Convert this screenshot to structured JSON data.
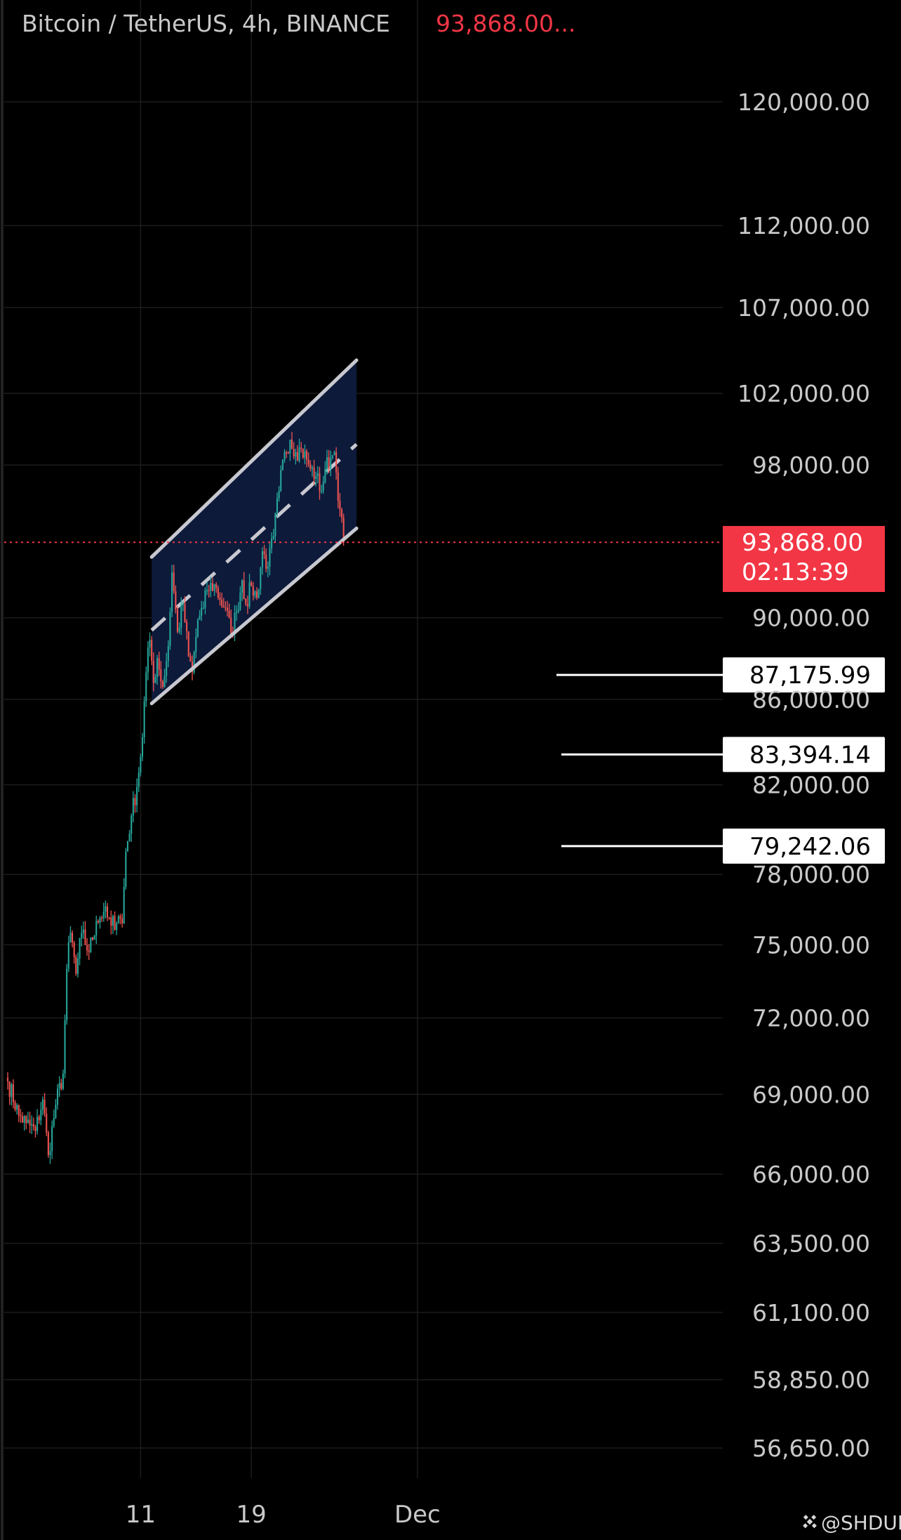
{
  "header": {
    "symbol": "Bitcoin / TetherUS, 4h, BINANCE",
    "price": "93,868.00..."
  },
  "current_price": {
    "value": "93,868.00",
    "countdown": "02:13:39"
  },
  "watermark": "@SHDUK",
  "colors": {
    "background": "#000000",
    "up": "#26a69a",
    "down": "#ef5350",
    "price_tag": "#f23645",
    "channel_fill": "#0d1a3a",
    "channel_line": "#c8c8d0",
    "grid": "#1c1c1c"
  },
  "chart_data": {
    "type": "candlestick",
    "title": "Bitcoin / TetherUS, 4h, BINANCE",
    "y_scale": "log",
    "ylim": [
      55500,
      128000
    ],
    "y_ticks": [
      "120,000.00",
      "112,000.00",
      "107,000.00",
      "102,000.00",
      "98,000.00",
      "90,000.00",
      "86,000.00",
      "82,000.00",
      "78,000.00",
      "75,000.00",
      "72,000.00",
      "69,000.00",
      "66,000.00",
      "63,500.00",
      "61,100.00",
      "58,850.00",
      "56,650.00"
    ],
    "y_tick_values": [
      120000,
      112000,
      107000,
      102000,
      98000,
      90000,
      86000,
      82000,
      78000,
      75000,
      72000,
      69000,
      66000,
      63500,
      61100,
      58850,
      56650
    ],
    "x_ticks": [
      "11",
      "19",
      "Dec"
    ],
    "x_tick_index": [
      72,
      132,
      222
    ],
    "candle_count": 183,
    "checkpoints": [
      [
        0,
        69500
      ],
      [
        6,
        68200
      ],
      [
        10,
        67900
      ],
      [
        15,
        67600
      ],
      [
        19,
        68800
      ],
      [
        22,
        66700
      ],
      [
        26,
        68600
      ],
      [
        30,
        69800
      ],
      [
        32,
        74000
      ],
      [
        34,
        75500
      ],
      [
        37,
        73800
      ],
      [
        40,
        75500
      ],
      [
        44,
        74700
      ],
      [
        48,
        76000
      ],
      [
        52,
        76400
      ],
      [
        56,
        75800
      ],
      [
        60,
        76200
      ],
      [
        62,
        75900
      ],
      [
        64,
        79000
      ],
      [
        67,
        80600
      ],
      [
        70,
        81900
      ],
      [
        73,
        84200
      ],
      [
        75,
        87300
      ],
      [
        77,
        88900
      ],
      [
        79,
        86800
      ],
      [
        81,
        88000
      ],
      [
        84,
        86600
      ],
      [
        87,
        88600
      ],
      [
        89,
        92300
      ],
      [
        92,
        89300
      ],
      [
        95,
        90700
      ],
      [
        98,
        88100
      ],
      [
        100,
        87300
      ],
      [
        103,
        89900
      ],
      [
        106,
        90500
      ],
      [
        108,
        91400
      ],
      [
        112,
        91700
      ],
      [
        115,
        90900
      ],
      [
        118,
        90500
      ],
      [
        121,
        89200
      ],
      [
        124,
        90300
      ],
      [
        127,
        91900
      ],
      [
        129,
        90700
      ],
      [
        132,
        91600
      ],
      [
        135,
        91000
      ],
      [
        138,
        93400
      ],
      [
        141,
        92600
      ],
      [
        144,
        94200
      ],
      [
        147,
        96600
      ],
      [
        150,
        98700
      ],
      [
        153,
        99400
      ],
      [
        156,
        98700
      ],
      [
        159,
        98900
      ],
      [
        162,
        98300
      ],
      [
        164,
        97800
      ],
      [
        167,
        97400
      ],
      [
        170,
        96600
      ],
      [
        172,
        97800
      ],
      [
        175,
        98400
      ],
      [
        177,
        98700
      ],
      [
        178,
        97600
      ],
      [
        180,
        95600
      ],
      [
        182,
        93868
      ]
    ],
    "volatility": 0.0055,
    "seed": 7,
    "current_price": 93868,
    "levels": [
      {
        "label": "87,175.99",
        "value": 87175.99
      },
      {
        "label": "83,394.14",
        "value": 83394.14
      },
      {
        "label": "79,242.06",
        "value": 79242.06
      }
    ],
    "channel": {
      "start_index": 78,
      "end_index": 189,
      "lower": [
        85800,
        94600
      ],
      "upper": [
        93100,
        103900
      ]
    }
  }
}
